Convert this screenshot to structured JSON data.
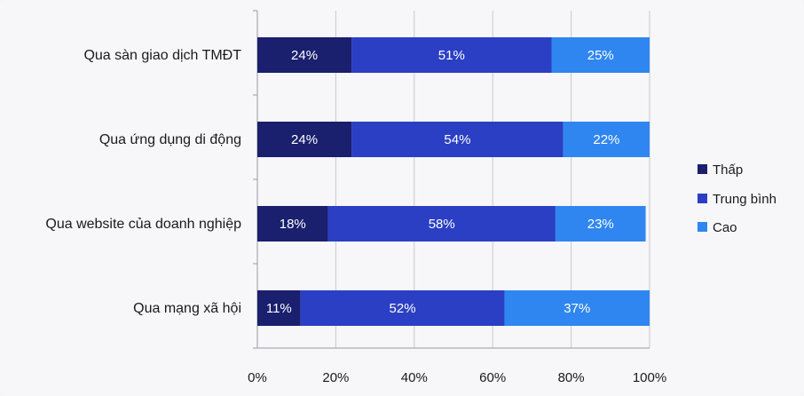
{
  "chart_data": {
    "type": "bar",
    "orientation": "horizontal",
    "stacked": true,
    "categories": [
      "Qua sàn giao dịch TMĐT",
      "Qua ứng dụng di động",
      "Qua website của doanh nghiệp",
      "Qua mạng xã hội"
    ],
    "series": [
      {
        "name": "Thấp",
        "values": [
          24,
          24,
          18,
          11
        ],
        "labels": [
          "24%",
          "24%",
          "18%",
          "11%"
        ],
        "color": "#1a1f6e"
      },
      {
        "name": "Trung bình",
        "values": [
          51,
          54,
          58,
          52
        ],
        "labels": [
          "51%",
          "54%",
          "58%",
          "52%"
        ],
        "color": "#2b3fc4"
      },
      {
        "name": "Cao",
        "values": [
          25,
          22,
          23,
          37
        ],
        "labels": [
          "25%",
          "22%",
          "23%",
          "37%"
        ],
        "color": "#2f86f0"
      }
    ],
    "xlim": [
      0,
      100
    ],
    "xticks": [
      "0%",
      "20%",
      "40%",
      "60%",
      "80%",
      "100%"
    ],
    "grid": true,
    "legend": "right",
    "title": "",
    "xlabel": "",
    "ylabel": ""
  }
}
